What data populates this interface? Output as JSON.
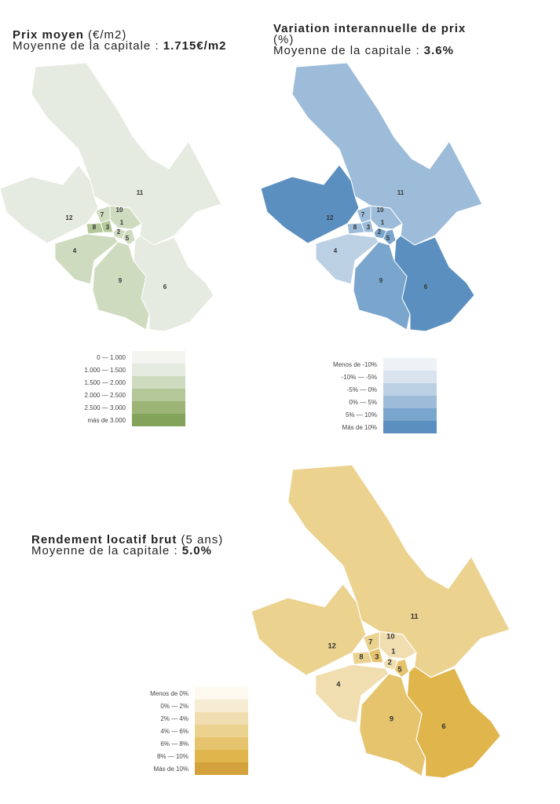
{
  "maps": [
    {
      "id": "prix",
      "title_bold": "Prix moyen",
      "title_rest": " (€/m2)",
      "avg_label": "Moyenne de la capitale : ",
      "avg_value": "1.715€/m2",
      "legend": [
        "0 — 1.000",
        "1.000 — 1.500",
        "1.500 — 2.000",
        "2.000 — 2.500",
        "2.500 — 3.000",
        "más de 3.000"
      ],
      "colors": [
        "#f4f5f0",
        "#e6ebe1",
        "#cfdbbf",
        "#b4c89a",
        "#9cb576",
        "#84a35a"
      ],
      "district_bins": {
        "11": 1,
        "12": 1,
        "6": 1,
        "4": 2,
        "9": 2,
        "10": 2,
        "7": 2,
        "8": 3,
        "3": 3,
        "1": 2,
        "2": 2,
        "5": 2
      }
    },
    {
      "id": "variation",
      "title_bold": "Variation interannuelle de prix",
      "title_rest": "(%)",
      "avg_label": "Moyenne de la capitale : ",
      "avg_value": "3.6%",
      "legend": [
        "Menos de -10%",
        "-10%  —  -5%",
        "-5%  —  0%",
        "0%  —  5%",
        "5%  —  10%",
        "Más de 10%"
      ],
      "colors": [
        "#eef2f7",
        "#dae4ef",
        "#bcd0e4",
        "#9dbcd9",
        "#7aa5cc",
        "#5a8fbf"
      ],
      "district_bins": {
        "11": 3,
        "12": 5,
        "6": 5,
        "4": 2,
        "9": 4,
        "10": 3,
        "7": 3,
        "8": 3,
        "3": 3,
        "1": 3,
        "2": 4,
        "5": 4
      }
    },
    {
      "id": "rendement",
      "title_bold": "Rendement locatif brut",
      "title_rest": " (5 ans)",
      "avg_label": "Moyenne de la capitale : ",
      "avg_value": "5.0%",
      "legend": [
        "Menos de 0%",
        "0%  —  2%",
        "2%  —  4%",
        "4%  —  6%",
        "6%  —  8%",
        "8%  —  10%",
        "Más de 10%"
      ],
      "colors": [
        "#fdf9ee",
        "#f6ecd3",
        "#f1deb0",
        "#ecd28f",
        "#e6c46e",
        "#e0b54b",
        "#d4a23c"
      ],
      "district_bins": {
        "11": 3,
        "12": 3,
        "6": 5,
        "4": 2,
        "9": 4,
        "10": 2,
        "7": 3,
        "8": 3,
        "3": 4,
        "1": 2,
        "2": 2,
        "5": 4
      }
    }
  ],
  "district_labels": [
    "11",
    "12",
    "10",
    "7",
    "8",
    "3",
    "1",
    "2",
    "5",
    "4",
    "9",
    "6"
  ]
}
